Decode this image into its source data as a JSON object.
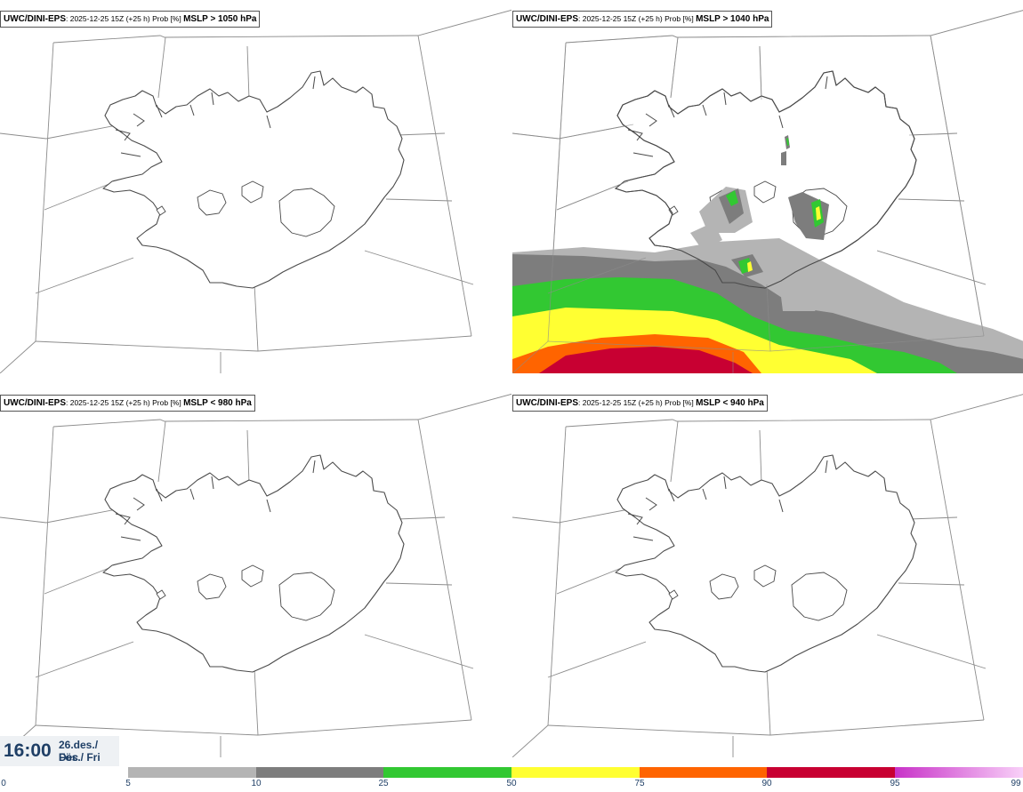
{
  "panels": [
    {
      "model": "UWC/DINI-EPS",
      "meta": ": 2025-12-25 15Z (+25 h) Prob [%] ",
      "var": "MSLP > 1050 hPa",
      "shaded": false
    },
    {
      "model": "UWC/DINI-EPS",
      "meta": ": 2025-12-25 15Z (+25 h) Prob [%] ",
      "var": "MSLP > 1040 hPa",
      "shaded": true
    },
    {
      "model": "UWC/DINI-EPS",
      "meta": ": 2025-12-25 15Z (+25 h) Prob [%] ",
      "var": "MSLP < 980 hPa",
      "shaded": false
    },
    {
      "model": "UWC/DINI-EPS",
      "meta": ": 2025-12-25 15Z (+25 h) Prob [%] ",
      "var": "MSLP < 940 hPa",
      "shaded": false
    }
  ],
  "valid_time": {
    "time": "16:00",
    "date_line1": "26.des./ Dec",
    "date_line2": "Fös./ Fri"
  },
  "legend": {
    "ticks": [
      "0",
      "5",
      "10",
      "25",
      "50",
      "75",
      "90",
      "95",
      "99"
    ],
    "colors": [
      "#ffffff",
      "#b4b4b4",
      "#7d7d7d",
      "#32c832",
      "#ffff32",
      "#ff6400",
      "#c80032",
      "#c832c8"
    ]
  }
}
